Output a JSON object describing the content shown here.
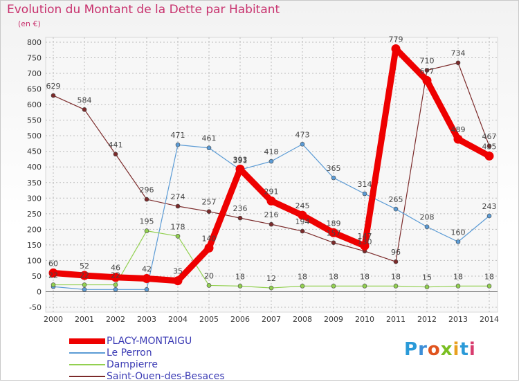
{
  "title": "Evolution du Montant de la Dette par Habitant",
  "unit_label": "(en €)",
  "brand": {
    "letters": [
      "P",
      "r",
      "o",
      "x",
      "i",
      "t",
      "i"
    ],
    "colors": [
      "#2a9ad8",
      "#3c8ed8",
      "#e0541e",
      "#7abf22",
      "#e8a020",
      "#2a9ad8",
      "#d83c6e"
    ]
  },
  "chart_data": {
    "type": "line",
    "title": "Evolution du Montant de la Dette par Habitant",
    "ylabel": "(en €)",
    "xlabel": "",
    "x": [
      "2000",
      "2001",
      "2002",
      "2003",
      "2004",
      "2005",
      "2006",
      "2007",
      "2008",
      "2009",
      "2010",
      "2011",
      "2012",
      "2013",
      "2014"
    ],
    "ylim": [
      -50,
      800
    ],
    "yticks": [
      "-50",
      "0",
      "50",
      "100",
      "150",
      "200",
      "250",
      "300",
      "350",
      "400",
      "450",
      "500",
      "550",
      "600",
      "650",
      "700",
      "750",
      "800"
    ],
    "grid": true,
    "legend_position": "bottom-left",
    "series": [
      {
        "name": "PLACY-MONTAIGU",
        "color": "#ee0000",
        "values": [
          60,
          52,
          46,
          42,
          35,
          140,
          393,
          291,
          245,
          189,
          147,
          779,
          677,
          489,
          435
        ],
        "labels": [
          "60",
          "52",
          "46",
          "42",
          "35",
          "140",
          "393",
          "291",
          "245",
          "189",
          "147",
          "779",
          "677",
          "489",
          "435"
        ]
      },
      {
        "name": "Le Perron",
        "color": "#5b9bd5",
        "values": [
          16,
          7,
          7,
          7,
          471,
          461,
          391,
          418,
          473,
          365,
          314,
          265,
          208,
          160,
          243
        ],
        "labels": [
          "",
          "",
          "",
          "",
          "471",
          "461",
          "391",
          "418",
          "473",
          "365",
          "314",
          "265",
          "208",
          "160",
          "243"
        ]
      },
      {
        "name": "Dampierre",
        "color": "#92d050",
        "values": [
          22,
          22,
          22,
          195,
          178,
          20,
          18,
          12,
          18,
          18,
          18,
          18,
          15,
          18,
          18
        ],
        "labels": [
          "22",
          "22",
          "22",
          "195",
          "178",
          "20",
          "18",
          "12",
          "18",
          "18",
          "18",
          "18",
          "15",
          "18",
          "18"
        ]
      },
      {
        "name": "Saint-Ouen-des-Besaces",
        "color": "#7b2a2a",
        "values": [
          629,
          584,
          441,
          296,
          274,
          257,
          236,
          216,
          194,
          157,
          130,
          96,
          710,
          734,
          467
        ],
        "labels": [
          "629",
          "584",
          "441",
          "296",
          "274",
          "257",
          "236",
          "216",
          "194",
          "157",
          "130",
          "96",
          "710",
          "734",
          "467"
        ]
      }
    ]
  }
}
